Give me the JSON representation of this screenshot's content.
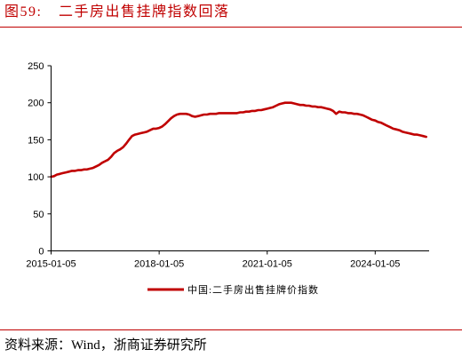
{
  "figure_label": "图59:",
  "source": "资料来源：Wind，浙商证券研究所",
  "colors": {
    "accent": "#c00000"
  },
  "chart_data": {
    "type": "line",
    "title": "二手房出售挂牌指数回落",
    "xlabel": "",
    "ylabel": "",
    "xlim": [
      "2015-01-05",
      "2025-07-05"
    ],
    "ylim": [
      0,
      250
    ],
    "x_ticks": [
      "2015-01-05",
      "2018-01-05",
      "2021-01-05",
      "2024-01-05"
    ],
    "y_ticks": [
      0,
      50,
      100,
      150,
      200,
      250
    ],
    "grid": false,
    "legend_position": "bottom",
    "series": [
      {
        "name": "中国:二手房出售挂牌价指数",
        "color": "#c00000",
        "x": [
          "2015-01-05",
          "2015-02-05",
          "2015-03-05",
          "2015-04-05",
          "2015-05-05",
          "2015-06-05",
          "2015-07-05",
          "2015-08-05",
          "2015-09-05",
          "2015-10-05",
          "2015-11-05",
          "2015-12-05",
          "2016-01-05",
          "2016-02-05",
          "2016-03-05",
          "2016-04-05",
          "2016-05-05",
          "2016-06-05",
          "2016-07-05",
          "2016-08-05",
          "2016-09-05",
          "2016-10-05",
          "2016-11-05",
          "2016-12-05",
          "2017-01-05",
          "2017-02-05",
          "2017-03-05",
          "2017-04-05",
          "2017-05-05",
          "2017-06-05",
          "2017-07-05",
          "2017-08-05",
          "2017-09-05",
          "2017-10-05",
          "2017-11-05",
          "2017-12-05",
          "2018-01-05",
          "2018-02-05",
          "2018-03-05",
          "2018-04-05",
          "2018-05-05",
          "2018-06-05",
          "2018-07-05",
          "2018-08-05",
          "2018-09-05",
          "2018-10-05",
          "2018-11-05",
          "2018-12-05",
          "2019-01-05",
          "2019-02-05",
          "2019-03-05",
          "2019-04-05",
          "2019-05-05",
          "2019-06-05",
          "2019-07-05",
          "2019-08-05",
          "2019-09-05",
          "2019-10-05",
          "2019-11-05",
          "2019-12-05",
          "2020-01-05",
          "2020-02-05",
          "2020-03-05",
          "2020-04-05",
          "2020-05-05",
          "2020-06-05",
          "2020-07-05",
          "2020-08-05",
          "2020-09-05",
          "2020-10-05",
          "2020-11-05",
          "2020-12-05",
          "2021-01-05",
          "2021-02-05",
          "2021-03-05",
          "2021-04-05",
          "2021-05-05",
          "2021-06-05",
          "2021-07-05",
          "2021-08-05",
          "2021-09-05",
          "2021-10-05",
          "2021-11-05",
          "2021-12-05",
          "2022-01-05",
          "2022-02-05",
          "2022-03-05",
          "2022-04-05",
          "2022-05-05",
          "2022-06-05",
          "2022-07-05",
          "2022-08-05",
          "2022-09-05",
          "2022-10-05",
          "2022-11-05",
          "2022-12-05",
          "2023-01-05",
          "2023-02-05",
          "2023-03-05",
          "2023-04-05",
          "2023-05-05",
          "2023-06-05",
          "2023-07-05",
          "2023-08-05",
          "2023-09-05",
          "2023-10-05",
          "2023-11-05",
          "2023-12-05",
          "2024-01-05",
          "2024-02-05",
          "2024-03-05",
          "2024-04-05",
          "2024-05-05",
          "2024-06-05",
          "2024-07-05",
          "2024-08-05",
          "2024-09-05",
          "2024-10-05",
          "2024-11-05",
          "2024-12-05",
          "2025-01-05",
          "2025-02-05",
          "2025-03-05",
          "2025-04-05",
          "2025-05-05",
          "2025-06-05"
        ],
        "y": [
          100,
          101,
          103,
          104,
          105,
          106,
          107,
          108,
          108,
          109,
          109,
          110,
          110,
          111,
          112,
          114,
          116,
          119,
          121,
          123,
          127,
          132,
          135,
          137,
          140,
          145,
          150,
          155,
          157,
          158,
          159,
          160,
          161,
          163,
          165,
          165,
          166,
          168,
          171,
          175,
          179,
          182,
          184,
          185,
          185,
          185,
          184,
          182,
          181,
          182,
          183,
          184,
          184,
          185,
          185,
          185,
          186,
          186,
          186,
          186,
          186,
          186,
          186,
          187,
          187,
          188,
          188,
          189,
          189,
          190,
          190,
          191,
          192,
          193,
          194,
          196,
          198,
          199,
          200,
          200,
          200,
          199,
          198,
          197,
          197,
          196,
          196,
          195,
          195,
          194,
          194,
          193,
          192,
          191,
          189,
          185,
          188,
          187,
          187,
          186,
          186,
          185,
          185,
          184,
          183,
          181,
          179,
          177,
          176,
          174,
          173,
          171,
          169,
          167,
          165,
          164,
          163,
          161,
          160,
          159,
          158,
          157,
          157,
          156,
          155,
          154
        ]
      }
    ]
  }
}
